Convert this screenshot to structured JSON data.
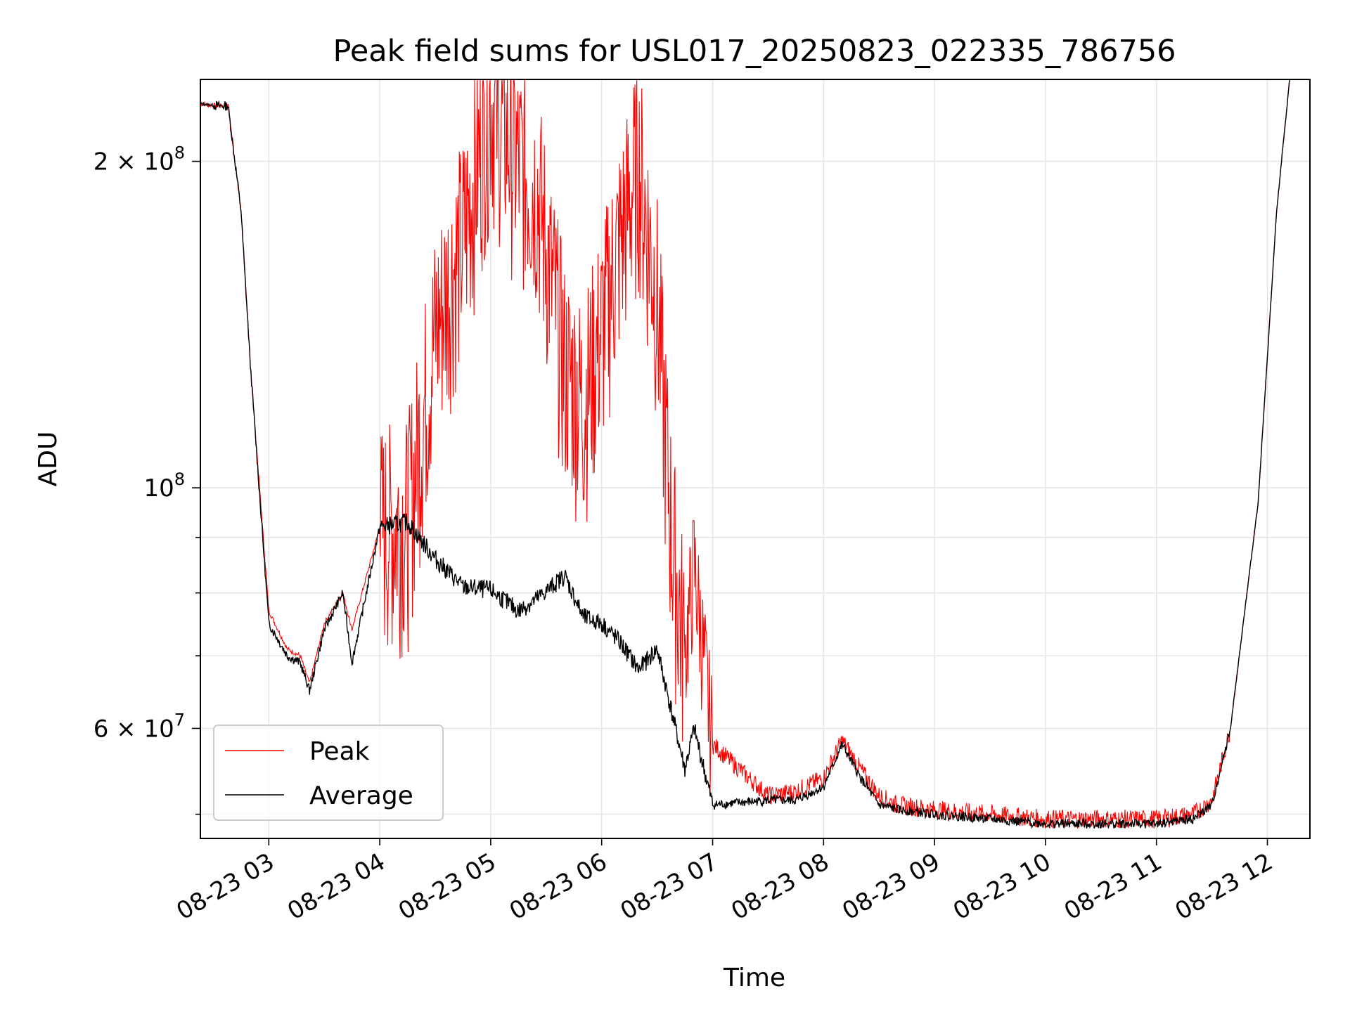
{
  "chart_data": {
    "type": "line",
    "title": "Peak field sums for USL017_20250823_022335_786756",
    "xlabel": "Time",
    "ylabel": "ADU",
    "yscale": "log",
    "ylim": [
      47500000,
      238000000
    ],
    "xlim": [
      "08-23 02:23",
      "08-23 12:23"
    ],
    "grid": true,
    "legend_position": "lower-left",
    "x_ticks": [
      "08-23 03",
      "08-23 04",
      "08-23 05",
      "08-23 06",
      "08-23 07",
      "08-23 08",
      "08-23 09",
      "08-23 10",
      "08-23 11",
      "08-23 12"
    ],
    "y_ticks_labeled": [
      {
        "value": 60000000,
        "mantissa": "6",
        "exponent": "7"
      },
      {
        "value": 100000000,
        "mantissa": "",
        "exponent": "8"
      },
      {
        "value": 200000000,
        "mantissa": "2",
        "exponent": "8"
      }
    ],
    "y_ticks_minor": [
      50000000,
      70000000,
      80000000,
      90000000
    ],
    "colors": {
      "peak": "#ff0000",
      "average": "#000000"
    },
    "x_times": [
      "08-23 02:23",
      "08-23 02:33",
      "08-23 02:38",
      "08-23 02:45",
      "08-23 02:50",
      "08-23 03:00",
      "08-23 03:10",
      "08-23 03:17",
      "08-23 03:22",
      "08-23 03:30",
      "08-23 03:40",
      "08-23 03:45",
      "08-23 04:00",
      "08-23 04:15",
      "08-23 04:30",
      "08-23 04:45",
      "08-23 05:00",
      "08-23 05:15",
      "08-23 05:25",
      "08-23 05:40",
      "08-23 05:50",
      "08-23 06:00",
      "08-23 06:10",
      "08-23 06:20",
      "08-23 06:30",
      "08-23 06:38",
      "08-23 06:45",
      "08-23 06:50",
      "08-23 07:00",
      "08-23 07:30",
      "08-23 07:45",
      "08-23 08:00",
      "08-23 08:10",
      "08-23 08:20",
      "08-23 08:30",
      "08-23 08:40",
      "08-23 09:00",
      "08-23 09:30",
      "08-23 10:00",
      "08-23 10:30",
      "08-23 11:00",
      "08-23 11:20",
      "08-23 11:30",
      "08-23 11:40",
      "08-23 11:55",
      "08-23 12:05",
      "08-23 12:12"
    ],
    "series": [
      {
        "name": "Peak",
        "values": [
          226000000,
          225000000,
          225000000,
          180000000,
          130000000,
          77000000,
          71000000,
          70000000,
          66000000,
          75000000,
          80000000,
          74000000,
          92000000,
          93000000,
          140000000,
          170000000,
          230000000,
          200000000,
          190000000,
          130000000,
          120000000,
          140000000,
          170000000,
          200000000,
          150000000,
          90000000,
          70000000,
          85000000,
          58000000,
          52000000,
          52500000,
          54000000,
          58500000,
          55000000,
          52000000,
          51000000,
          50500000,
          50000000,
          49500000,
          49500000,
          49500000,
          50000000,
          51500000,
          60000000,
          97000000,
          180000000,
          238000000
        ]
      },
      {
        "name": "Average",
        "values": [
          226000000,
          225000000,
          225000000,
          180000000,
          130000000,
          75000000,
          70000000,
          69000000,
          65000000,
          74000000,
          80000000,
          69000000,
          92000000,
          93000000,
          86000000,
          81000000,
          80500000,
          77000000,
          79000000,
          83000000,
          76000000,
          75000000,
          72000000,
          68000000,
          71000000,
          62000000,
          55000000,
          60000000,
          51000000,
          51500000,
          51500000,
          53000000,
          58000000,
          54000000,
          51000000,
          50500000,
          50000000,
          49500000,
          49000000,
          49000000,
          49000000,
          49500000,
          51000000,
          60000000,
          97000000,
          180000000,
          238000000
        ]
      }
    ]
  }
}
